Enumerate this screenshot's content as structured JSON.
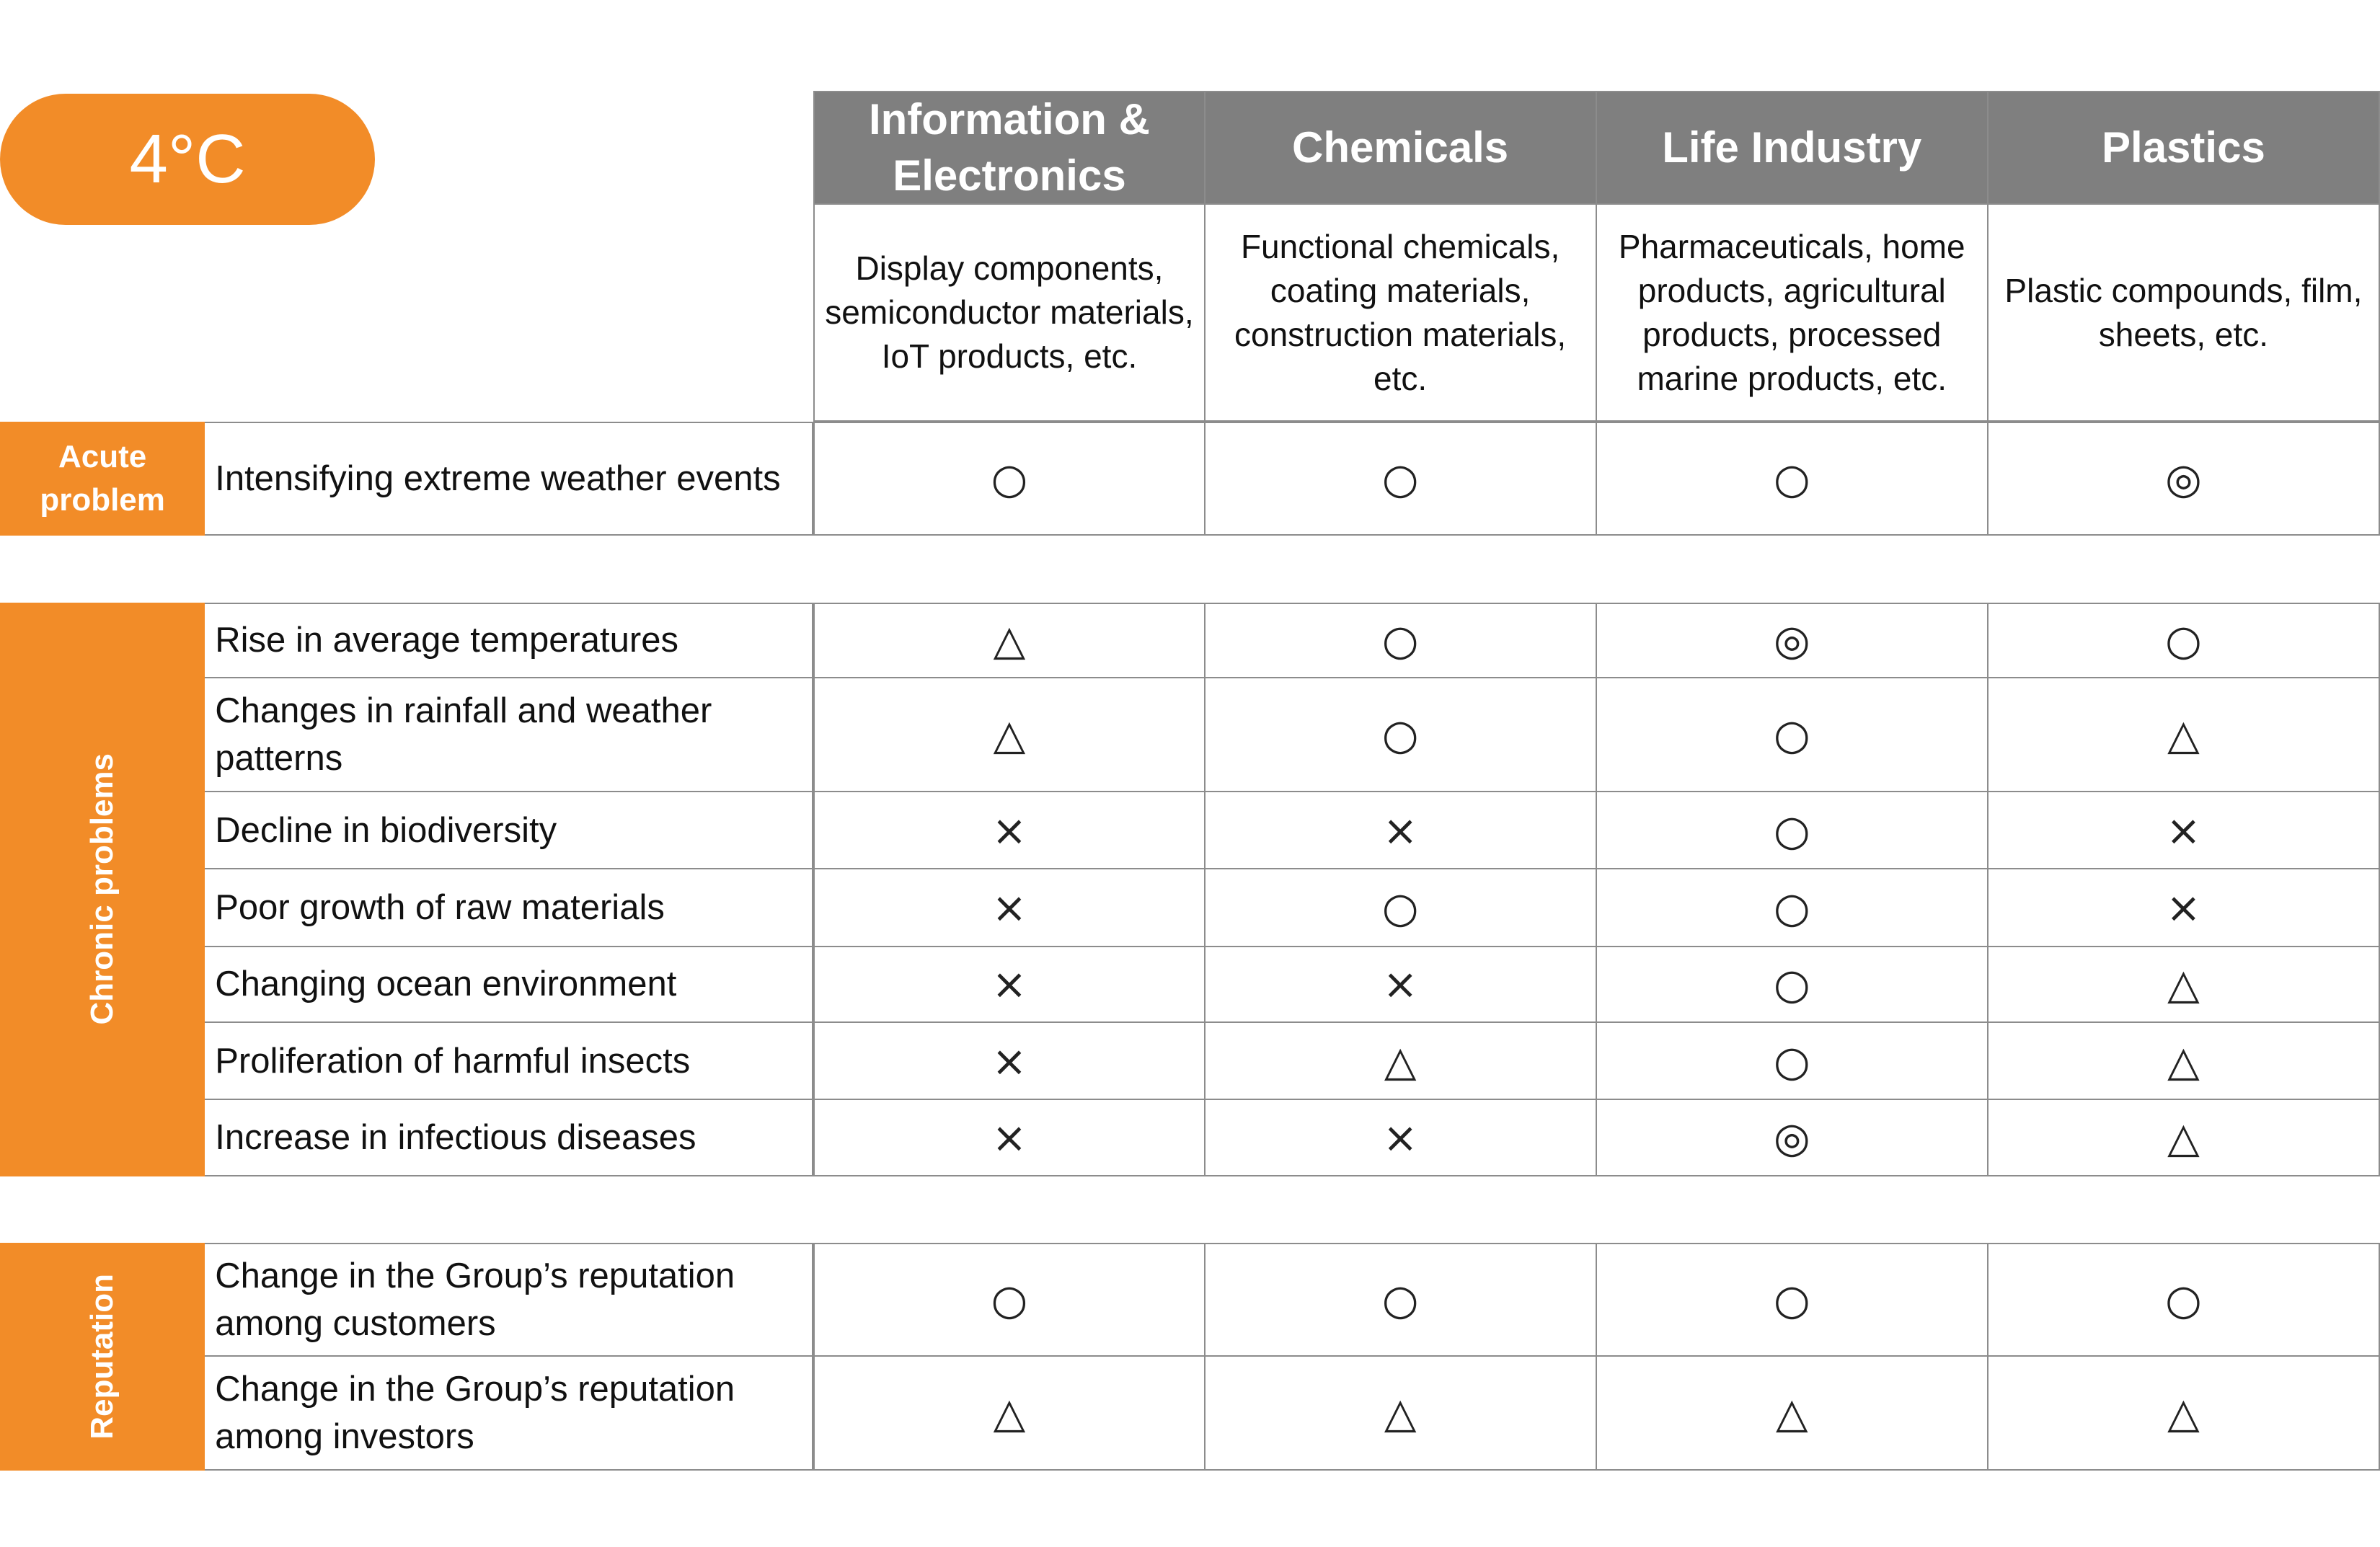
{
  "badge": "4°C",
  "columns": [
    {
      "name": "Information & Electronics",
      "description": "Display components, semiconductor materials, IoT products, etc."
    },
    {
      "name": "Chemicals",
      "description": "Functional chemicals, coating materials, construction materials, etc."
    },
    {
      "name": "Life Industry",
      "description": "Pharmaceuticals, home products, agricultural products, processed marine products, etc."
    },
    {
      "name": "Plastics",
      "description": "Plastic compounds, film, sheets, etc."
    }
  ],
  "groups": [
    {
      "label": "Acute problem",
      "rows": [
        {
          "risk": "Intensifying extreme weather events",
          "ratings": [
            "○",
            "○",
            "○",
            "◎"
          ]
        }
      ]
    },
    {
      "label": "Chronic problems",
      "rows": [
        {
          "risk": "Rise in average temperatures",
          "ratings": [
            "△",
            "○",
            "◎",
            "○"
          ]
        },
        {
          "risk": "Changes in rainfall and weather patterns",
          "ratings": [
            "△",
            "○",
            "○",
            "△"
          ]
        },
        {
          "risk": "Decline in biodiversity",
          "ratings": [
            "×",
            "×",
            "○",
            "×"
          ]
        },
        {
          "risk": "Poor growth of raw materials",
          "ratings": [
            "×",
            "○",
            "○",
            "×"
          ]
        },
        {
          "risk": "Changing ocean environment",
          "ratings": [
            "×",
            "×",
            "○",
            "△"
          ]
        },
        {
          "risk": "Proliferation of harmful insects",
          "ratings": [
            "×",
            "△",
            "○",
            "△"
          ]
        },
        {
          "risk": "Increase in infectious diseases",
          "ratings": [
            "×",
            "×",
            "◎",
            "△"
          ]
        }
      ]
    },
    {
      "label": "Reputation",
      "rows": [
        {
          "risk": "Change in the Group’s reputation among customers",
          "ratings": [
            "○",
            "○",
            "○",
            "○"
          ]
        },
        {
          "risk": "Change in the Group’s reputation among investors",
          "ratings": [
            "△",
            "△",
            "△",
            "△"
          ]
        }
      ]
    }
  ]
}
